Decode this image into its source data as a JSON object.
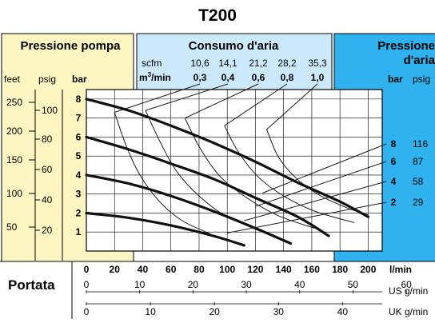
{
  "title": "T200",
  "panels": {
    "pump_pressure": {
      "label": "Pressione pompa"
    },
    "air_consumption": {
      "label": "Consumo d'aria"
    },
    "air_pressure": {
      "label_line1": "Pressione",
      "label_line2": "d'aria"
    }
  },
  "air_consumption_scale": {
    "scfm_label": "scfm",
    "scfm_values": [
      "10,6",
      "14,1",
      "21,2",
      "28,2",
      "35,3"
    ],
    "m3_label_base": "m",
    "m3_label_sup": "3",
    "m3_label_tail": "/min",
    "m3_values": [
      "0,3",
      "0,4",
      "0,6",
      "0,8",
      "1,0"
    ]
  },
  "left_axes": {
    "feet_label": "feet",
    "psig_label": "psig",
    "bar_label": "bar",
    "feet_ticks": [
      "250",
      "200",
      "150",
      "100",
      "50"
    ],
    "psig_ticks": [
      "100",
      "80",
      "60",
      "40",
      "20"
    ],
    "bar_ticks": [
      "8",
      "7",
      "6",
      "5",
      "4",
      "3",
      "2",
      "1"
    ]
  },
  "right_axes": {
    "bar_label": "bar",
    "psig_label": "psig",
    "rows": [
      {
        "bar": "8",
        "psig": "116"
      },
      {
        "bar": "6",
        "psig": "87"
      },
      {
        "bar": "4",
        "psig": "58"
      },
      {
        "bar": "2",
        "psig": "29"
      }
    ]
  },
  "flow_axes": {
    "title": "Portata",
    "lmin_label": "l/min",
    "lmin_ticks": [
      "0",
      "20",
      "40",
      "60",
      "80",
      "100",
      "120",
      "140",
      "160",
      "180",
      "200"
    ],
    "us_label": "US g/min",
    "us_ticks": [
      "0",
      "10",
      "20",
      "30",
      "40",
      "50"
    ],
    "us_last_tick": "60",
    "uk_label": "UK g/min",
    "uk_ticks": [
      "0",
      "10",
      "20",
      "30",
      "40"
    ]
  },
  "colors": {
    "yellow_panel": "#fdf6c3",
    "light_blue_panel": "#cbe9fb",
    "blue_panel": "#2fb2ee",
    "curve": "#1a1a1a"
  },
  "chart_data": {
    "type": "line",
    "xlabel": "l/min",
    "ylabel": "bar",
    "xlim": [
      0,
      210
    ],
    "ylim": [
      0,
      8.5
    ],
    "series": [
      {
        "name": "8",
        "x": [
          0,
          30,
          60,
          90,
          120,
          150,
          180,
          200
        ],
        "values": [
          8,
          7.4,
          6.6,
          5.7,
          4.7,
          3.6,
          2.6,
          1.8
        ]
      },
      {
        "name": "6",
        "x": [
          0,
          30,
          60,
          90,
          120,
          150,
          172
        ],
        "values": [
          6,
          5.35,
          4.6,
          3.8,
          2.8,
          1.8,
          0.8
        ]
      },
      {
        "name": "4",
        "x": [
          0,
          30,
          60,
          90,
          120,
          145
        ],
        "values": [
          4,
          3.55,
          2.9,
          2.1,
          1.2,
          0.4
        ]
      },
      {
        "name": "2",
        "x": [
          0,
          30,
          60,
          90,
          112
        ],
        "values": [
          2,
          1.75,
          1.35,
          0.8,
          0.3
        ]
      }
    ],
    "air_consumption_curves": [
      {
        "label": "0,3",
        "x": [
          20,
          28,
          38,
          52,
          68,
          88
        ],
        "values": [
          7.3,
          5.6,
          4.0,
          2.6,
          1.6,
          0.9
        ]
      },
      {
        "label": "0,4",
        "x": [
          42,
          52,
          64,
          80,
          100,
          125
        ],
        "values": [
          7.4,
          5.8,
          4.2,
          2.9,
          1.8,
          1.1
        ]
      },
      {
        "label": "0,6",
        "x": [
          70,
          80,
          94,
          112,
          135,
          162
        ],
        "values": [
          7.0,
          5.5,
          4.0,
          2.9,
          1.9,
          1.2
        ]
      },
      {
        "label": "0,8",
        "x": [
          98,
          108,
          122,
          140,
          162,
          190
        ],
        "values": [
          6.6,
          5.2,
          3.9,
          2.9,
          2.1,
          1.5
        ]
      },
      {
        "label": "1,0",
        "x": [
          128,
          136,
          148,
          164,
          184,
          200
        ],
        "values": [
          6.4,
          5.0,
          3.9,
          3.0,
          2.3,
          1.9
        ]
      }
    ]
  }
}
